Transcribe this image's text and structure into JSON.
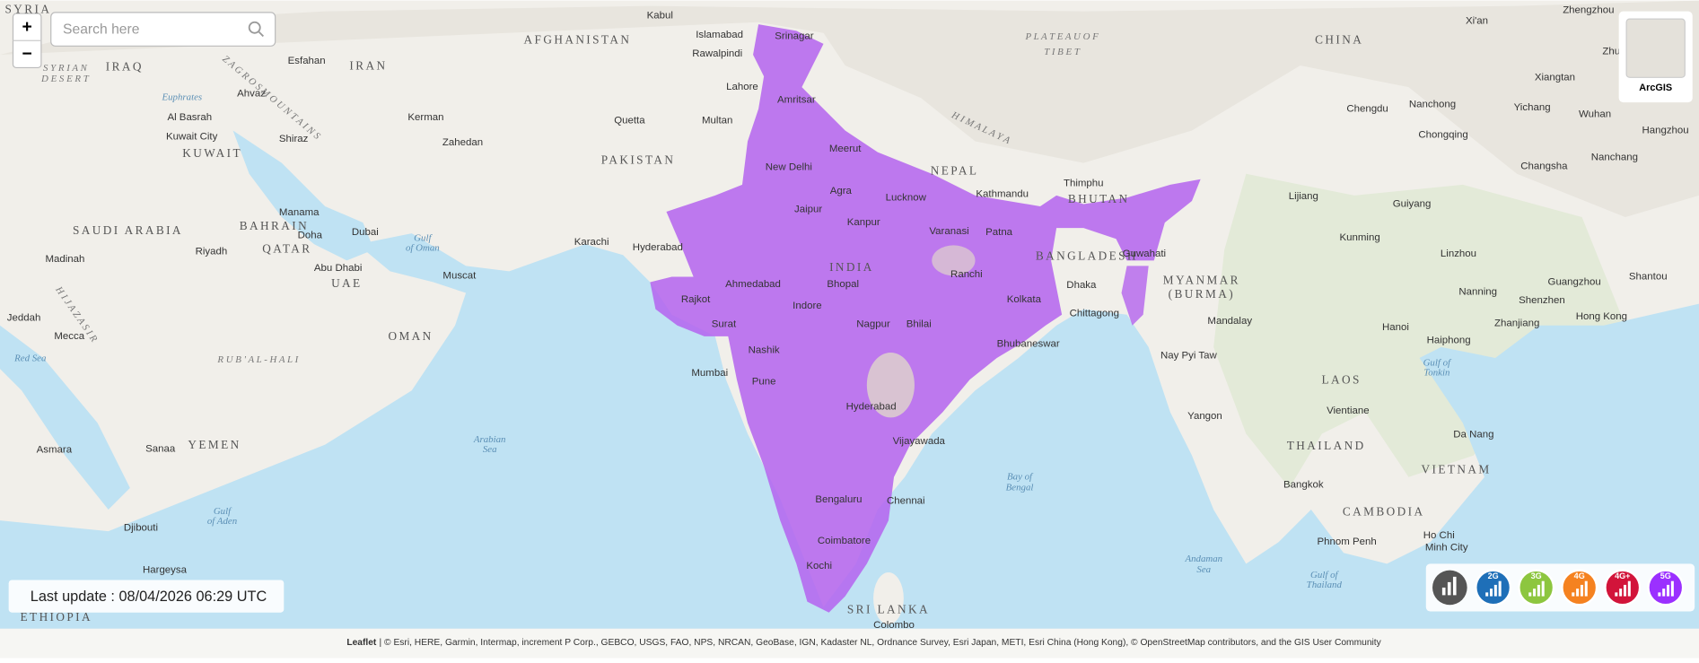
{
  "zoom": {
    "in": "+",
    "out": "−"
  },
  "search": {
    "placeholder": "Search here"
  },
  "basemap": {
    "label": "ArcGIS"
  },
  "last_update": "Last update : 08/04/2026 06:29 UTC",
  "network_filters": [
    "2G",
    "3G",
    "4G",
    "4G+",
    "5G"
  ],
  "attribution": {
    "leaflet": "Leaflet",
    "credits": "| © Esri, HERE, Garmin, Intermap, increment P Corp., GEBCO, USGS, FAO, NPS, NRCAN, GeoBase, IGN, Kadaster NL, Ordnance Survey, Esri Japan, METI, Esri China (Hong Kong), © OpenStreetMap contributors, and the GIS User Community"
  },
  "map_labels": {
    "countries": [
      "SYRIA",
      "AFGHANISTAN",
      "IRAN",
      "IRAQ",
      "PAKISTAN",
      "SAUDI ARABIA",
      "OMAN",
      "YEMEN",
      "INDIA",
      "NEPAL",
      "BHUTAN",
      "BANGLADESH",
      "MYANMAR",
      "(BURMA)",
      "CHINA",
      "LAOS",
      "THAILAND",
      "VIETNAM",
      "CAMBODIA",
      "SRI LANKA",
      "ETHIOPIA",
      "UAE",
      "QATAR",
      "BAHRAIN",
      "KUWAIT"
    ],
    "cities": [
      "Kabul",
      "Islamabad",
      "Srinagar",
      "Rawalpindi",
      "Lahore",
      "Amritsar",
      "Multan",
      "Quetta",
      "Kerman",
      "Zahedan",
      "Esfahan",
      "Ahvaz",
      "Al Basrah",
      "Kuwait City",
      "Shiraz",
      "Manama",
      "Doha",
      "Dubai",
      "Abu Dhabi",
      "Muscat",
      "Riyadh",
      "Madinah",
      "Jeddah",
      "Mecca",
      "Karachi",
      "Hyderabad",
      "Ahmedabad",
      "Rajkot",
      "Surat",
      "Mumbai",
      "Pune",
      "Nashik",
      "Indore",
      "Bhopal",
      "Jaipur",
      "New Delhi",
      "Meerut",
      "Agra",
      "Lucknow",
      "Kanpur",
      "Varanasi",
      "Patna",
      "Ranchi",
      "Kolkata",
      "Nagpur",
      "Bhilai",
      "Hyderabad",
      "Vijayawada",
      "Bhubaneswar",
      "Chennai",
      "Bengaluru",
      "Coimbatore",
      "Kochi",
      "Colombo",
      "Kathmandu",
      "Thimphu",
      "Guwahati",
      "Dhaka",
      "Chittagong",
      "Mandalay",
      "Nay Pyi Taw",
      "Yangon",
      "Bangkok",
      "Phnom Penh",
      "Ho Chi",
      "Minh City",
      "Vientiane",
      "Hanoi",
      "Da Nang",
      "Haiphong",
      "Kunming",
      "Lijiang",
      "Guiyang",
      "Chengdu",
      "Chongqing",
      "Nanchong",
      "Yichang",
      "Wuhan",
      "Changsha",
      "Nanchang",
      "Xi'an",
      "Zhengzhou",
      "Zhumadia",
      "Xiangtan",
      "Hangzhou",
      "Linzhou",
      "Nanning",
      "Guangzhou",
      "Shantou",
      "Shenzhen",
      "Hong Kong",
      "Zhanjiang",
      "Asmara",
      "Sanaa",
      "Djibouti",
      "Hargeysa"
    ],
    "water": [
      "Arabian",
      "Sea",
      "Bay of",
      "Bengal",
      "Gulf",
      "of Oman",
      "Red Sea",
      "Gulf",
      "of Aden",
      "Andaman",
      "Sea",
      "Gulf of",
      "Thailand",
      "Gulf of",
      "Tonkin",
      "Euphrates"
    ],
    "regions": [
      "P L A T E A U   O F",
      "T I B E T",
      "H I M A L A Y A",
      "Z A G R O S   M O U N T A I N S",
      "R U B '   A L  -  H A L I",
      "S Y R I A N",
      "D E S E R T",
      "H I J A Z   A S I R"
    ]
  }
}
